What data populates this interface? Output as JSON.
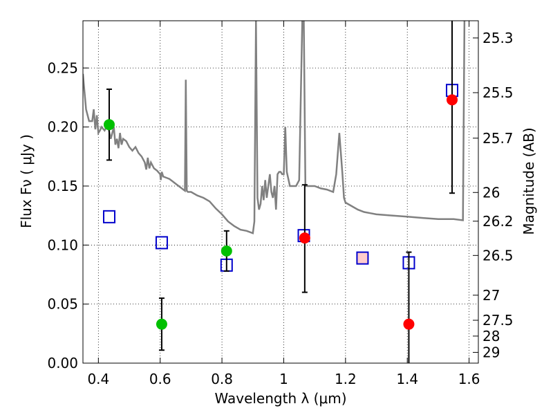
{
  "chart_data": {
    "type": "scatter",
    "xlabel": "Wavelength  λ (μm)",
    "ylabel": "Flux  Fν  ( μJy )",
    "ylabel_right": "Magnitude (AB)",
    "xlim": [
      0.35,
      1.63
    ],
    "ylim": [
      0.0,
      0.29
    ],
    "grid": true,
    "x_ticks": [
      {
        "value": 0.4,
        "label": "0.4"
      },
      {
        "value": 0.6,
        "label": "0.6"
      },
      {
        "value": 0.8,
        "label": "0.8"
      },
      {
        "value": 1.0,
        "label": "1"
      },
      {
        "value": 1.2,
        "label": "1.2"
      },
      {
        "value": 1.4,
        "label": "1.4"
      },
      {
        "value": 1.6,
        "label": "1.6"
      }
    ],
    "y_ticks": [
      {
        "value": 0.0,
        "label": "0.00"
      },
      {
        "value": 0.05,
        "label": "0.05"
      },
      {
        "value": 0.1,
        "label": "0.10"
      },
      {
        "value": 0.15,
        "label": "0.15"
      },
      {
        "value": 0.2,
        "label": "0.20"
      },
      {
        "value": 0.25,
        "label": "0.25"
      }
    ],
    "right_ticks": [
      {
        "mag": 25.3,
        "label": "25.3"
      },
      {
        "mag": 25.5,
        "label": "25.5"
      },
      {
        "mag": 25.7,
        "label": "25.7"
      },
      {
        "mag": 26.0,
        "label": "26"
      },
      {
        "mag": 26.2,
        "label": "26.2"
      },
      {
        "mag": 26.5,
        "label": "26.5"
      },
      {
        "mag": 27.0,
        "label": "27"
      },
      {
        "mag": 27.5,
        "label": "27.5"
      },
      {
        "mag": 28.0,
        "label": "28"
      },
      {
        "mag": 29.0,
        "label": "29"
      }
    ],
    "series": [
      {
        "kind": "line",
        "color": "#808080",
        "points": [
          [
            0.35,
            0.245
          ],
          [
            0.355,
            0.23
          ],
          [
            0.36,
            0.215
          ],
          [
            0.37,
            0.205
          ],
          [
            0.38,
            0.205
          ],
          [
            0.385,
            0.215
          ],
          [
            0.39,
            0.198
          ],
          [
            0.395,
            0.21
          ],
          [
            0.4,
            0.195
          ],
          [
            0.405,
            0.197
          ],
          [
            0.41,
            0.2
          ],
          [
            0.42,
            0.197
          ],
          [
            0.43,
            0.202
          ],
          [
            0.44,
            0.19
          ],
          [
            0.445,
            0.195
          ],
          [
            0.45,
            0.2
          ],
          [
            0.455,
            0.185
          ],
          [
            0.46,
            0.19
          ],
          [
            0.465,
            0.182
          ],
          [
            0.47,
            0.195
          ],
          [
            0.475,
            0.185
          ],
          [
            0.48,
            0.19
          ],
          [
            0.49,
            0.188
          ],
          [
            0.5,
            0.183
          ],
          [
            0.51,
            0.18
          ],
          [
            0.52,
            0.183
          ],
          [
            0.53,
            0.178
          ],
          [
            0.54,
            0.175
          ],
          [
            0.55,
            0.17
          ],
          [
            0.555,
            0.164
          ],
          [
            0.56,
            0.174
          ],
          [
            0.565,
            0.165
          ],
          [
            0.57,
            0.17
          ],
          [
            0.58,
            0.165
          ],
          [
            0.59,
            0.163
          ],
          [
            0.6,
            0.16
          ],
          [
            0.602,
            0.155
          ],
          [
            0.605,
            0.162
          ],
          [
            0.61,
            0.158
          ],
          [
            0.62,
            0.157
          ],
          [
            0.63,
            0.156
          ],
          [
            0.64,
            0.154
          ],
          [
            0.65,
            0.152
          ],
          [
            0.66,
            0.15
          ],
          [
            0.67,
            0.148
          ],
          [
            0.675,
            0.147
          ],
          [
            0.68,
            0.146
          ],
          [
            0.683,
            0.24
          ],
          [
            0.686,
            0.146
          ],
          [
            0.69,
            0.145
          ],
          [
            0.7,
            0.145
          ],
          [
            0.72,
            0.142
          ],
          [
            0.74,
            0.14
          ],
          [
            0.76,
            0.137
          ],
          [
            0.78,
            0.131
          ],
          [
            0.8,
            0.126
          ],
          [
            0.82,
            0.12
          ],
          [
            0.84,
            0.116
          ],
          [
            0.86,
            0.113
          ],
          [
            0.88,
            0.112
          ],
          [
            0.9,
            0.11
          ],
          [
            0.905,
            0.12
          ],
          [
            0.91,
            0.29
          ],
          [
            0.915,
            0.14
          ],
          [
            0.92,
            0.13
          ],
          [
            0.925,
            0.135
          ],
          [
            0.93,
            0.15
          ],
          [
            0.935,
            0.138
          ],
          [
            0.94,
            0.155
          ],
          [
            0.945,
            0.14
          ],
          [
            0.95,
            0.15
          ],
          [
            0.955,
            0.16
          ],
          [
            0.96,
            0.145
          ],
          [
            0.965,
            0.14
          ],
          [
            0.97,
            0.15
          ],
          [
            0.975,
            0.13
          ],
          [
            0.98,
            0.16
          ],
          [
            0.985,
            0.162
          ],
          [
            0.99,
            0.162
          ],
          [
            0.995,
            0.16
          ],
          [
            1.0,
            0.16
          ],
          [
            1.005,
            0.2
          ],
          [
            1.01,
            0.162
          ],
          [
            1.02,
            0.15
          ],
          [
            1.04,
            0.15
          ],
          [
            1.05,
            0.155
          ],
          [
            1.06,
            0.29
          ],
          [
            1.065,
            0.29
          ],
          [
            1.07,
            0.15
          ],
          [
            1.08,
            0.15
          ],
          [
            1.1,
            0.15
          ],
          [
            1.12,
            0.148
          ],
          [
            1.14,
            0.147
          ],
          [
            1.16,
            0.145
          ],
          [
            1.17,
            0.16
          ],
          [
            1.18,
            0.195
          ],
          [
            1.19,
            0.16
          ],
          [
            1.195,
            0.14
          ],
          [
            1.2,
            0.136
          ],
          [
            1.22,
            0.133
          ],
          [
            1.24,
            0.13
          ],
          [
            1.26,
            0.128
          ],
          [
            1.28,
            0.127
          ],
          [
            1.3,
            0.126
          ],
          [
            1.35,
            0.125
          ],
          [
            1.4,
            0.124
          ],
          [
            1.45,
            0.123
          ],
          [
            1.5,
            0.122
          ],
          [
            1.55,
            0.122
          ],
          [
            1.58,
            0.121
          ],
          [
            1.585,
            0.29
          ]
        ]
      },
      {
        "kind": "markers",
        "marker": "open-square",
        "color": "#0000cc",
        "x": [
          0.435,
          0.605,
          0.815,
          1.065,
          1.255,
          1.405,
          1.545
        ],
        "y": [
          0.124,
          0.102,
          0.083,
          0.108,
          0.089,
          0.085,
          0.231
        ],
        "fill_colors": [
          "none",
          "none",
          "none",
          "none",
          "#ffcccc",
          "none",
          "none"
        ]
      },
      {
        "kind": "markers",
        "marker": "filled-circle",
        "color": "#00c000",
        "x": [
          0.435,
          0.605,
          0.815
        ],
        "y": [
          0.202,
          0.033,
          0.095
        ],
        "yerr": [
          0.03,
          0.022,
          0.017
        ]
      },
      {
        "kind": "markers",
        "marker": "filled-circle",
        "color": "#ff0000",
        "x": [
          1.068,
          1.405,
          1.545
        ],
        "y": [
          0.106,
          0.033,
          0.223
        ],
        "yerr_low": [
          0.046,
          0.06,
          0.079
        ],
        "yerr_high": [
          0.045,
          0.061,
          0.079
        ]
      }
    ]
  }
}
